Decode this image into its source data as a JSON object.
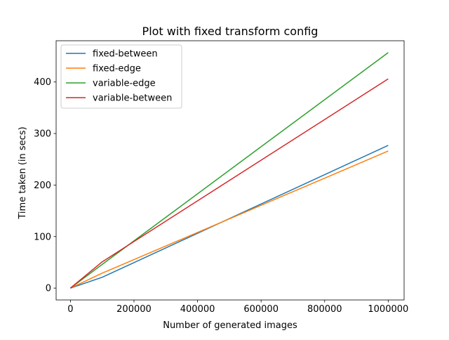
{
  "chart_data": {
    "type": "line",
    "title": "Plot with fixed transform config",
    "xlabel": "Number of generated images",
    "ylabel": "Time taken (in secs)",
    "xlim": [
      -45000,
      1050000
    ],
    "ylim": [
      -23,
      480
    ],
    "xticks": [
      0,
      200000,
      400000,
      600000,
      800000,
      1000000
    ],
    "xtick_labels": [
      "0",
      "200000",
      "400000",
      "600000",
      "800000",
      "1000000"
    ],
    "yticks": [
      0,
      100,
      200,
      300,
      400
    ],
    "ytick_labels": [
      "0",
      "100",
      "200",
      "300",
      "400"
    ],
    "grid": false,
    "legend_position": "top-left",
    "x": [
      0,
      100000,
      1000000
    ],
    "series": [
      {
        "name": "fixed-between",
        "color": "#1f77b4",
        "values": [
          0,
          21,
          277
        ]
      },
      {
        "name": "fixed-edge",
        "color": "#ff7f0e",
        "values": [
          0,
          29,
          266
        ]
      },
      {
        "name": "variable-edge",
        "color": "#2ca02c",
        "values": [
          0,
          46,
          457
        ]
      },
      {
        "name": "variable-between",
        "color": "#d62728",
        "values": [
          0,
          51,
          406
        ]
      }
    ]
  }
}
